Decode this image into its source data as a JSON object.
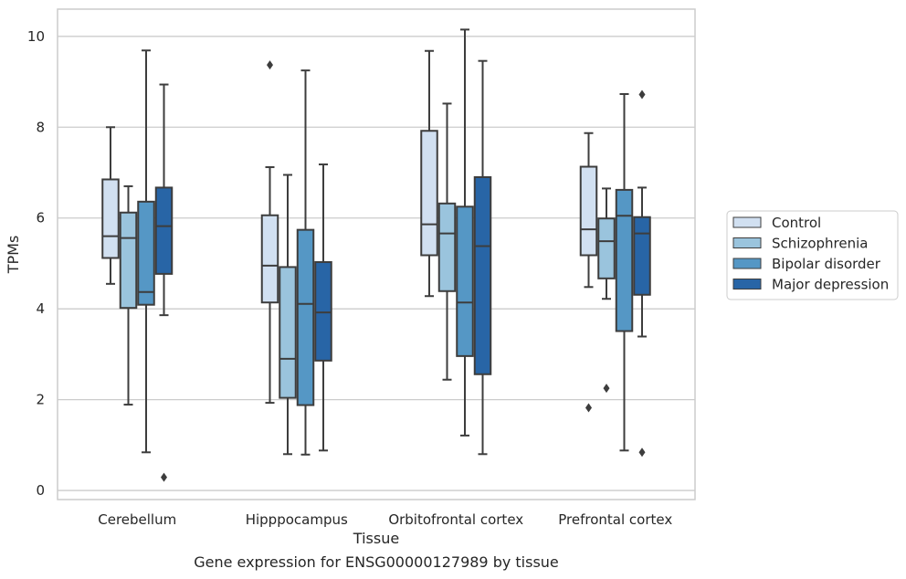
{
  "chart_data": {
    "type": "box",
    "title": "",
    "caption": "Gene expression for ENSG00000127989 by tissue",
    "xlabel": "Tissue",
    "ylabel": "TPMs",
    "ylim": [
      -0.2,
      10.6
    ],
    "yticks": [
      0,
      2,
      4,
      6,
      8,
      10
    ],
    "grid": "horizontal",
    "legend_position": "right",
    "categories": [
      "Cerebellum",
      "Hipppocampus",
      "Orbitofrontal cortex",
      "Prefrontal cortex"
    ],
    "series": [
      {
        "name": "Control",
        "color": "#d1e0f1",
        "boxes": [
          {
            "whislo": 4.55,
            "q1": 5.12,
            "med": 5.6,
            "q3": 6.85,
            "whishi": 8.0,
            "fliers": []
          },
          {
            "whislo": 1.93,
            "q1": 4.14,
            "med": 4.95,
            "q3": 6.06,
            "whishi": 7.12,
            "fliers": [
              9.37
            ]
          },
          {
            "whislo": 4.28,
            "q1": 5.18,
            "med": 5.86,
            "q3": 7.92,
            "whishi": 9.68,
            "fliers": []
          },
          {
            "whislo": 4.48,
            "q1": 5.18,
            "med": 5.75,
            "q3": 7.13,
            "whishi": 7.87,
            "fliers": [
              1.82
            ]
          }
        ]
      },
      {
        "name": "Schizophrenia",
        "color": "#9ac4dd",
        "boxes": [
          {
            "whislo": 1.89,
            "q1": 4.02,
            "med": 5.56,
            "q3": 6.12,
            "whishi": 6.7,
            "fliers": []
          },
          {
            "whislo": 0.8,
            "q1": 2.04,
            "med": 2.9,
            "q3": 4.92,
            "whishi": 6.95,
            "fliers": []
          },
          {
            "whislo": 2.44,
            "q1": 4.39,
            "med": 5.66,
            "q3": 6.32,
            "whishi": 8.52,
            "fliers": []
          },
          {
            "whislo": 4.22,
            "q1": 4.67,
            "med": 5.49,
            "q3": 5.99,
            "whishi": 6.65,
            "fliers": [
              2.25
            ]
          }
        ]
      },
      {
        "name": "Bipolar disorder",
        "color": "#5597c5",
        "boxes": [
          {
            "whislo": 0.84,
            "q1": 4.09,
            "med": 4.37,
            "q3": 6.36,
            "whishi": 9.69,
            "fliers": []
          },
          {
            "whislo": 0.79,
            "q1": 1.88,
            "med": 4.11,
            "q3": 5.74,
            "whishi": 9.25,
            "fliers": []
          },
          {
            "whislo": 1.21,
            "q1": 2.96,
            "med": 4.14,
            "q3": 6.25,
            "whishi": 10.15,
            "fliers": []
          },
          {
            "whislo": 0.88,
            "q1": 3.51,
            "med": 6.05,
            "q3": 6.62,
            "whishi": 8.73,
            "fliers": []
          }
        ]
      },
      {
        "name": "Major depression",
        "color": "#2865a6",
        "boxes": [
          {
            "whislo": 3.86,
            "q1": 4.77,
            "med": 5.82,
            "q3": 6.67,
            "whishi": 8.94,
            "fliers": [
              0.29
            ]
          },
          {
            "whislo": 0.88,
            "q1": 2.86,
            "med": 3.92,
            "q3": 5.03,
            "whishi": 7.18,
            "fliers": []
          },
          {
            "whislo": 0.8,
            "q1": 2.56,
            "med": 5.38,
            "q3": 6.9,
            "whishi": 9.46,
            "fliers": []
          },
          {
            "whislo": 3.39,
            "q1": 4.31,
            "med": 5.66,
            "q3": 6.02,
            "whishi": 6.67,
            "fliers": [
              8.72,
              0.84
            ]
          }
        ]
      }
    ]
  }
}
